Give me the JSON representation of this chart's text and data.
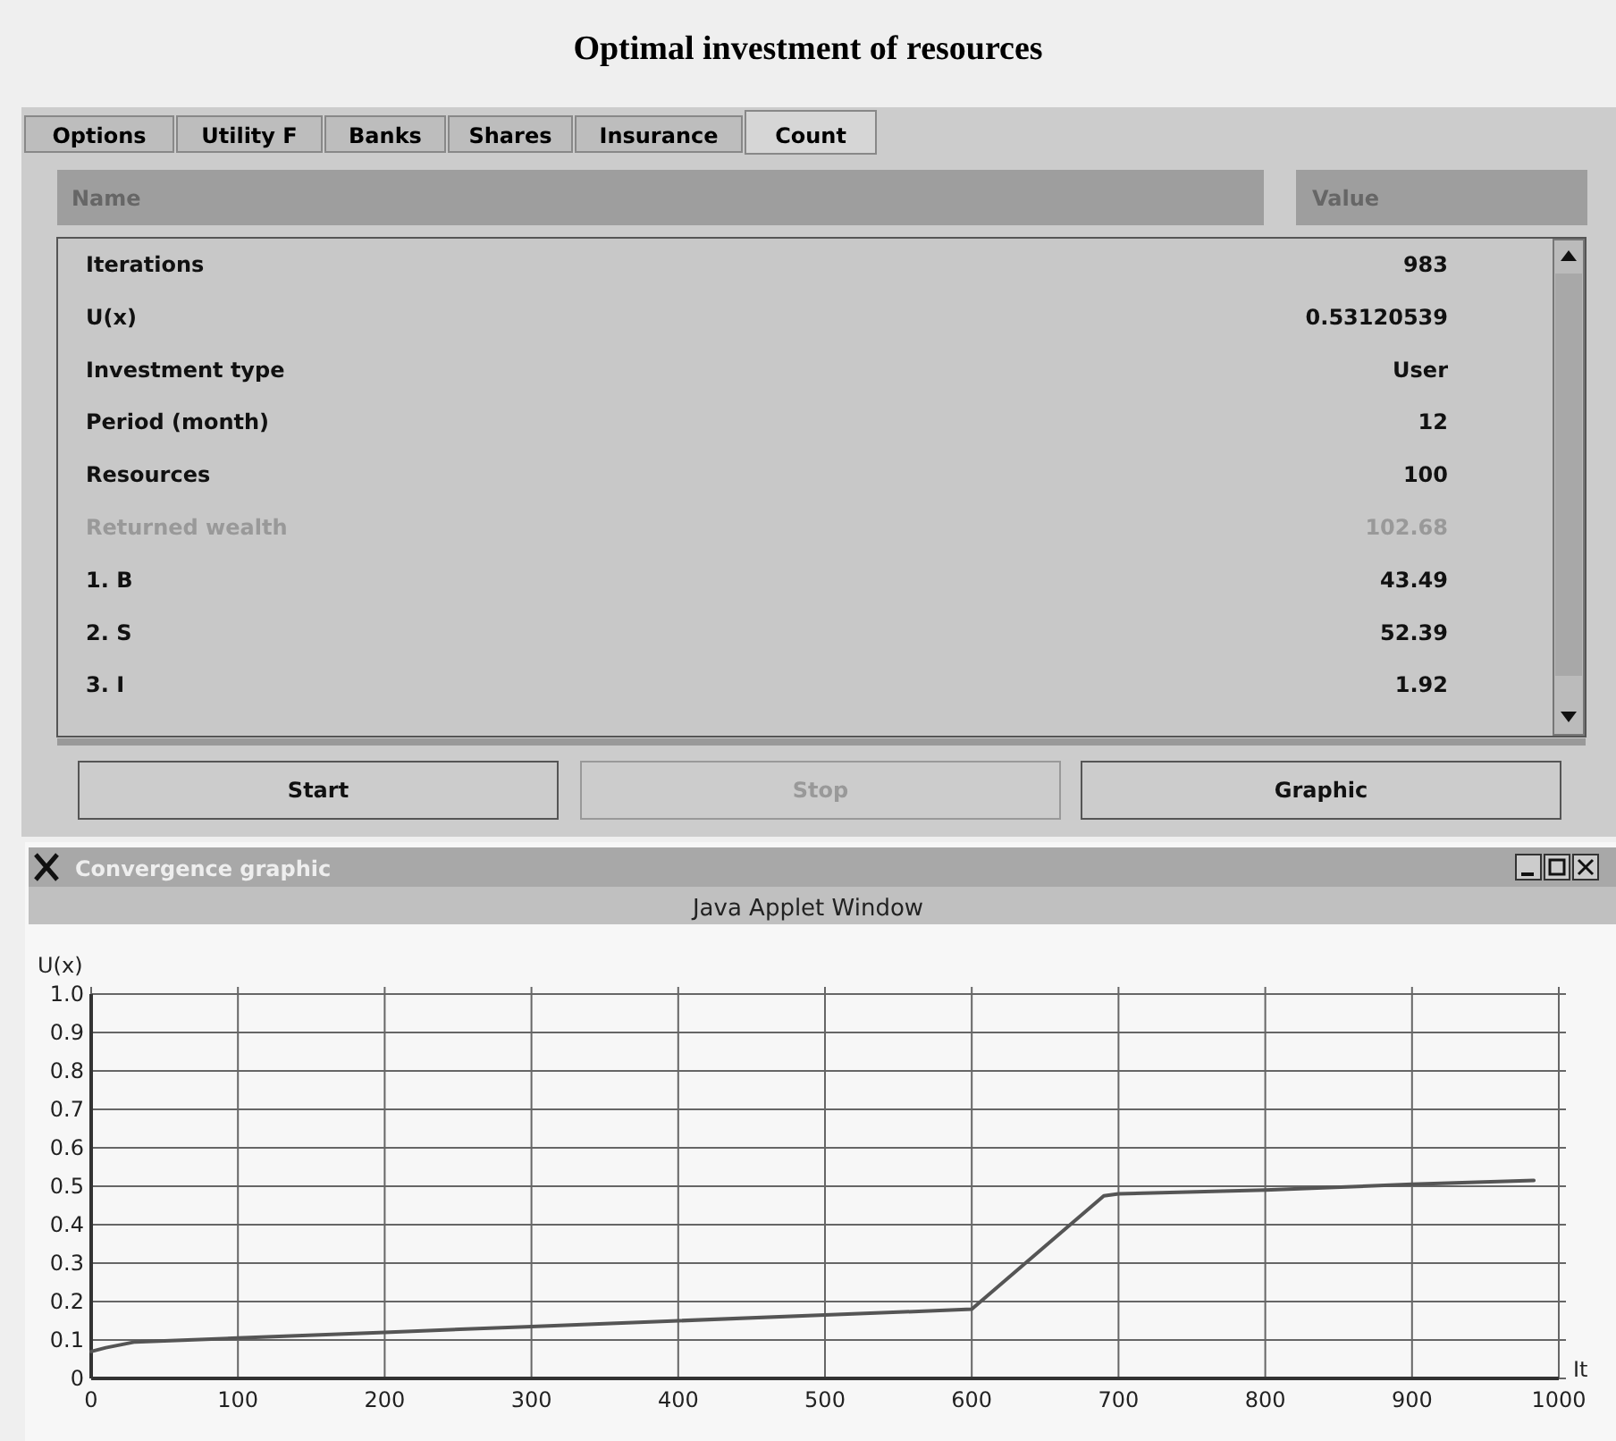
{
  "chart_data": [
    {
      "type": "other",
      "title": "Optimal investment of resources",
      "categories": [
        "Iterations",
        "U(x)",
        "Investment type",
        "Period (month)",
        "Resources",
        "Returned wealth",
        "1. B",
        "2. S",
        "3. I"
      ],
      "value_labels": [
        "983",
        "0.53120539",
        "User",
        "12",
        "100",
        "102.68",
        "43.49",
        "52.39",
        "1.92"
      ],
      "annotations": [
        "Options",
        "Utility F",
        "Banks",
        "Shares",
        "Insurance",
        "Count",
        "Name",
        "Value",
        "Start",
        "Stop",
        "Graphic"
      ]
    },
    {
      "type": "line",
      "title": "Convergence graphic",
      "subtitle": "Java Applet Window",
      "xlabel": "It",
      "ylabel": "U(x)",
      "x": [
        0,
        10,
        30,
        100,
        200,
        300,
        400,
        500,
        600,
        690,
        700,
        800,
        900,
        983
      ],
      "series": [
        {
          "color": "#555555",
          "values": [
            0.07,
            0.08,
            0.095,
            0.105,
            0.12,
            0.135,
            0.15,
            0.165,
            0.18,
            0.475,
            0.48,
            0.49,
            0.505,
            0.515
          ]
        }
      ],
      "xlim": [
        0,
        1000
      ],
      "xticks": [
        0,
        100,
        200,
        300,
        400,
        500,
        600,
        700,
        800,
        900,
        1000
      ],
      "ylim": [
        0,
        1
      ],
      "yticks": [
        0,
        0.1,
        0.2,
        0.3,
        0.4,
        0.5,
        0.6,
        0.7,
        0.8,
        0.9,
        {
          "value": 1,
          "label": "1.0"
        }
      ],
      "grid": true,
      "marker": "none",
      "line_style": "solid"
    }
  ]
}
